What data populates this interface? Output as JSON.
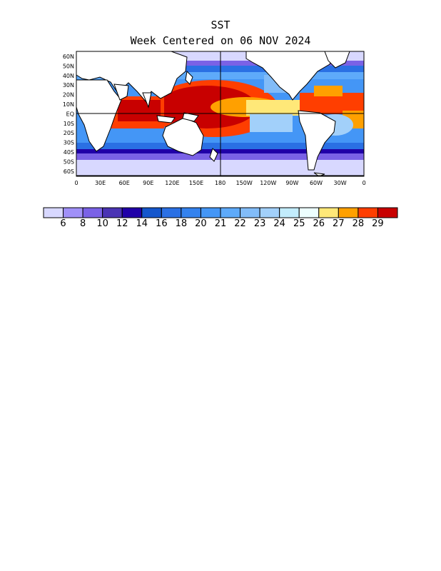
{
  "title": "SST",
  "subtitle": "Week Centered on 06 NOV 2024",
  "map": {
    "lat_labels": [
      "60N",
      "50N",
      "40N",
      "30N",
      "20N",
      "10N",
      "EQ",
      "10S",
      "20S",
      "30S",
      "40S",
      "50S",
      "60S"
    ],
    "lon_labels": [
      "0",
      "30E",
      "60E",
      "90E",
      "120E",
      "150E",
      "180",
      "150W",
      "120W",
      "90W",
      "60W",
      "30W",
      "0"
    ]
  },
  "colorbar": {
    "colors": [
      "#d8d8ff",
      "#a090f8",
      "#7a62e6",
      "#4a34b4",
      "#2000a8",
      "#1456cc",
      "#2a70e4",
      "#3482ee",
      "#4496f6",
      "#5eaafa",
      "#82bcf8",
      "#a2d0fa",
      "#c2ecfc",
      "#ecfefe",
      "#ffe878",
      "#ffa000",
      "#ff3e00",
      "#c80000"
    ],
    "labels": [
      "6",
      "8",
      "10",
      "12",
      "14",
      "16",
      "18",
      "20",
      "21",
      "22",
      "23",
      "24",
      "25",
      "26",
      "27",
      "28",
      "29"
    ]
  }
}
